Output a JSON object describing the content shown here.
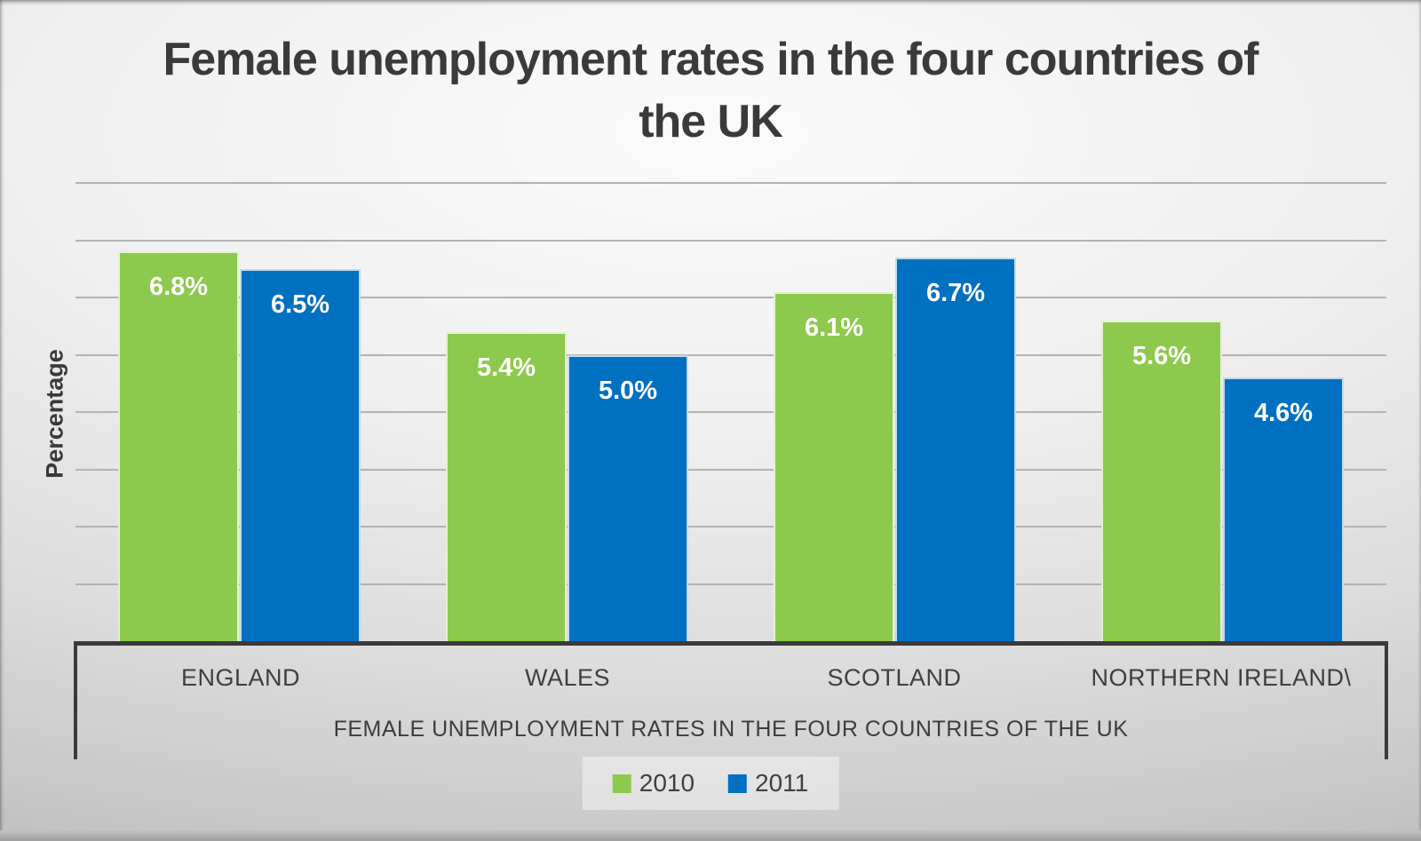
{
  "title": "Female unemployment rates in the four countries of the UK",
  "y_axis_label": "Percentage",
  "x_axis_title": "FEMALE UNEMPLOYMENT RATES IN THE FOUR COUNTRIES OF THE UK",
  "colors": {
    "series_2010": "#8DC94C",
    "series_2011": "#0070C0",
    "gridline": "#B3B3B3",
    "axis_box_border": "#3A3A3A",
    "data_label_text": "#FFFFFF",
    "text": "#3F3F3F"
  },
  "chart_data": {
    "type": "bar",
    "title": "Female unemployment rates in the four countries of the UK",
    "categories": [
      "ENGLAND",
      "WALES",
      "SCOTLAND",
      "NORTHERN IRELAND\\"
    ],
    "series": [
      {
        "name": "2010",
        "color": "#8DC94C",
        "values": [
          6.8,
          5.4,
          6.1,
          5.6
        ],
        "labels": [
          "6.8%",
          "5.4%",
          "6.1%",
          "5.6%"
        ]
      },
      {
        "name": "2011",
        "color": "#0070C0",
        "values": [
          6.5,
          5.0,
          6.7,
          4.6
        ],
        "labels": [
          "6.5%",
          "5.0%",
          "6.7%",
          "4.6%"
        ]
      }
    ],
    "xlabel": "FEMALE UNEMPLOYMENT RATES IN THE FOUR COUNTRIES OF THE UK",
    "ylabel": "Percentage",
    "ylim": [
      0,
      8
    ],
    "gridline_step": 1,
    "y_tick_labels_visible": false,
    "grid": "horizontal",
    "legend_position": "bottom",
    "data_labels": "inside-end, white bold, percent format"
  },
  "legend": {
    "items": [
      {
        "label": "2010",
        "color": "#8DC94C"
      },
      {
        "label": "2011",
        "color": "#0070C0"
      }
    ]
  }
}
